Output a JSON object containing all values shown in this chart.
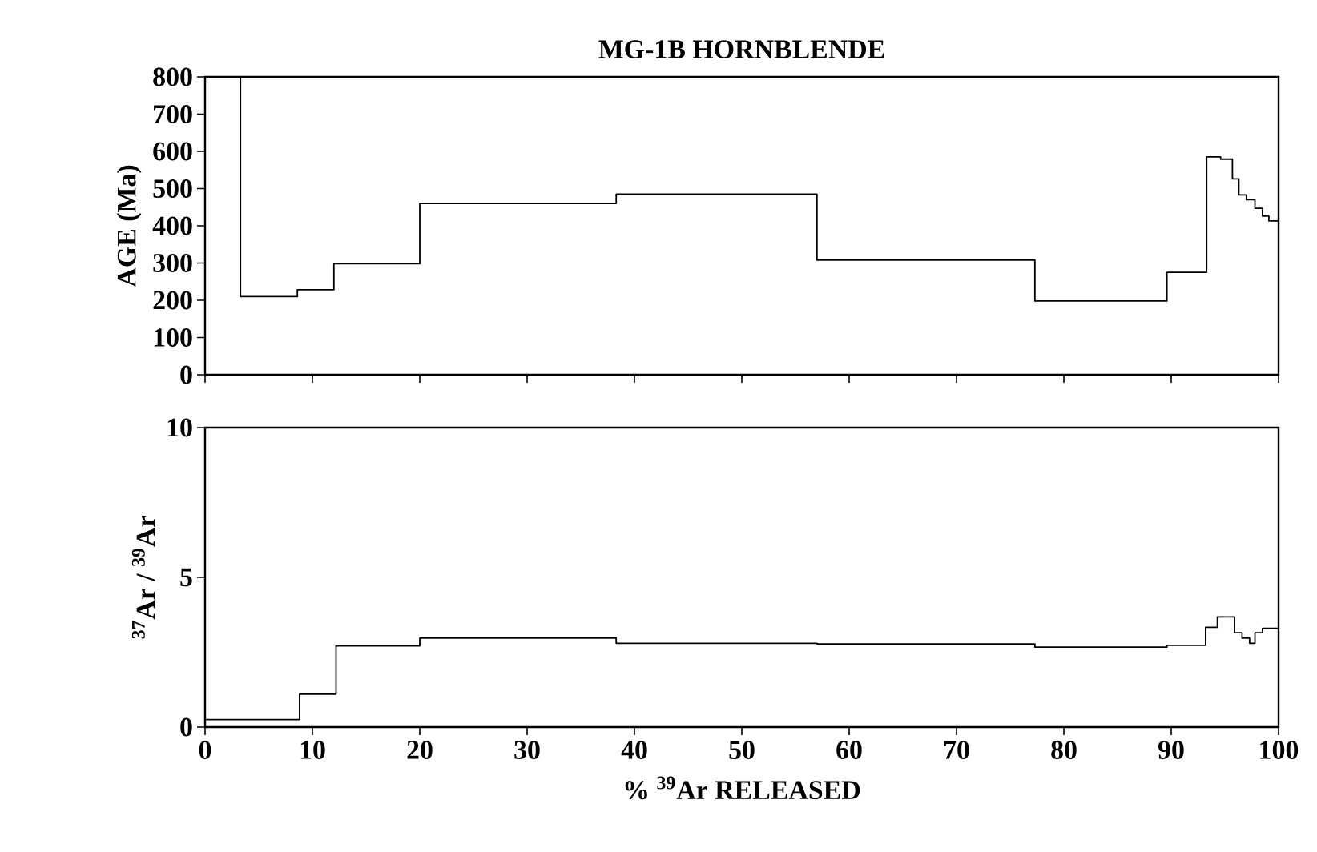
{
  "chart_data": [
    {
      "type": "step",
      "title": "MG-1B     HORNBLENDE",
      "ylabel": "AGE  (Ma)",
      "xlim": [
        0,
        100
      ],
      "xticks": [
        0,
        10,
        20,
        30,
        40,
        50,
        60,
        70,
        80,
        90,
        100
      ],
      "ylim": [
        0,
        800
      ],
      "yticks": [
        0,
        100,
        200,
        300,
        400,
        500,
        600,
        700,
        800
      ],
      "tick_labels": "y",
      "series": [
        {
          "color": "#000000",
          "x": [
            0,
            3.3,
            8.6,
            12,
            20,
            38.3,
            57,
            77.3,
            89.6,
            93.3,
            94.6,
            95.7,
            96.3,
            97.0,
            97.8,
            98.5,
            99.1,
            100
          ],
          "values": [
            800,
            210,
            228,
            298,
            460,
            485,
            308,
            198,
            275,
            585,
            579,
            526,
            483,
            470,
            447,
            426,
            413,
            413
          ]
        }
      ]
    },
    {
      "type": "step",
      "ylabel": "$^{37}$Ar / $^{39}$Ar",
      "xlabel": "%  $^{39}$Ar  RELEASED",
      "xlim": [
        0,
        100
      ],
      "xticks": [
        0,
        10,
        20,
        30,
        40,
        50,
        60,
        70,
        80,
        90,
        100
      ],
      "ylim": [
        0,
        10
      ],
      "yticks": [
        0,
        5,
        10
      ],
      "series": [
        {
          "color": "#000000",
          "x": [
            0,
            8.8,
            12.2,
            20,
            38.3,
            57,
            77.3,
            89.6,
            93.2,
            94.3,
            95.9,
            96.6,
            97.3,
            97.8,
            98.5,
            100
          ],
          "values": [
            0.25,
            1.1,
            2.71,
            2.97,
            2.8,
            2.78,
            2.67,
            2.73,
            3.33,
            3.68,
            3.15,
            2.97,
            2.8,
            3.15,
            3.3,
            3.3
          ]
        }
      ]
    }
  ]
}
